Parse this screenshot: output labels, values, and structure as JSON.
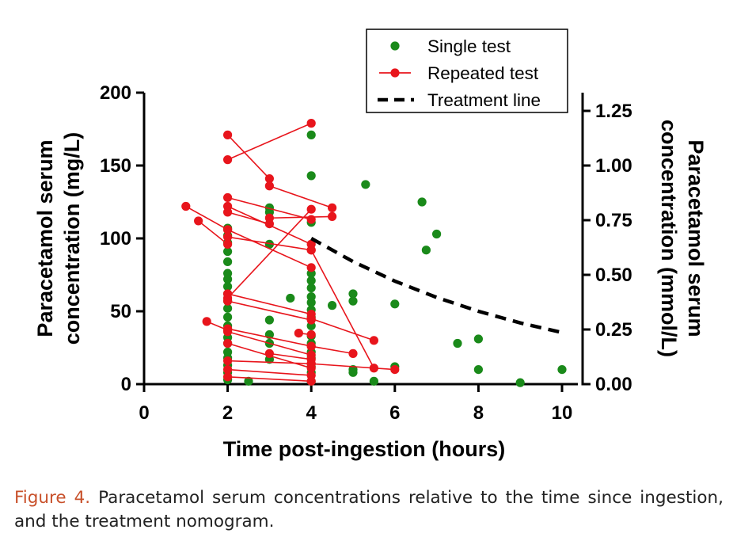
{
  "chart_data": {
    "type": "scatter",
    "xlabel": "Time post-ingestion (hours)",
    "ylabel_left": "Paracetamol serum concentration (mg/L)",
    "ylabel_left_lines": [
      "Paracetamol serum",
      "concentration (mg/L)"
    ],
    "ylabel_right": "Paracetamol serum concentration (mmol/L)",
    "ylabel_right_lines": [
      "Paracetamol serum",
      "concentration (mmol/L)"
    ],
    "xlim": [
      0,
      10.5
    ],
    "xticks": [
      0,
      2,
      4,
      6,
      8,
      10
    ],
    "ylim_left": [
      0,
      200
    ],
    "yticks_left": [
      0,
      50,
      100,
      150,
      200
    ],
    "ylim_right": [
      0,
      1.325
    ],
    "yticks_right": [
      "0.00",
      "0.25",
      "0.50",
      "0.75",
      "1.00",
      "1.25"
    ],
    "legend": {
      "position": "top-right",
      "entries": [
        "Single test",
        "Repeated test",
        "Treatment line"
      ]
    },
    "colors": {
      "single": "#1a8a1a",
      "repeated": "#e8151c",
      "treatment": "#000000"
    },
    "single_test": [
      [
        2,
        3
      ],
      [
        2,
        8
      ],
      [
        2,
        13
      ],
      [
        2,
        18
      ],
      [
        2,
        22
      ],
      [
        2,
        28
      ],
      [
        2,
        32
      ],
      [
        2,
        40
      ],
      [
        2,
        46
      ],
      [
        2,
        52
      ],
      [
        2,
        57
      ],
      [
        2,
        62
      ],
      [
        2,
        67
      ],
      [
        2,
        72
      ],
      [
        2,
        76
      ],
      [
        2,
        84
      ],
      [
        2,
        91
      ],
      [
        2,
        97
      ],
      [
        2,
        102
      ],
      [
        2,
        107
      ],
      [
        2.5,
        2
      ],
      [
        3,
        17
      ],
      [
        3,
        28
      ],
      [
        3,
        34
      ],
      [
        3,
        44
      ],
      [
        3,
        96
      ],
      [
        3,
        118
      ],
      [
        3,
        121
      ],
      [
        3.5,
        59
      ],
      [
        4,
        2
      ],
      [
        4,
        8
      ],
      [
        4,
        12
      ],
      [
        4,
        18
      ],
      [
        4,
        22
      ],
      [
        4,
        28
      ],
      [
        4,
        33
      ],
      [
        4,
        40
      ],
      [
        4,
        46
      ],
      [
        4,
        51
      ],
      [
        4,
        56
      ],
      [
        4,
        60
      ],
      [
        4,
        66
      ],
      [
        4,
        71
      ],
      [
        4,
        76
      ],
      [
        4,
        111
      ],
      [
        4,
        143
      ],
      [
        4,
        171
      ],
      [
        4.5,
        54
      ],
      [
        5,
        8
      ],
      [
        5,
        10
      ],
      [
        5,
        57
      ],
      [
        5,
        62
      ],
      [
        5.3,
        137
      ],
      [
        5.5,
        2
      ],
      [
        6,
        12
      ],
      [
        6,
        55
      ],
      [
        6.65,
        125
      ],
      [
        6.75,
        92
      ],
      [
        7,
        103
      ],
      [
        7.5,
        28
      ],
      [
        8,
        10
      ],
      [
        8,
        31
      ],
      [
        9,
        1
      ],
      [
        10,
        10
      ]
    ],
    "repeated_test": [
      [
        [
          1,
          122
        ],
        [
          2,
          106
        ]
      ],
      [
        [
          1.3,
          112
        ],
        [
          2,
          96
        ]
      ],
      [
        [
          1.5,
          43
        ],
        [
          2,
          37
        ]
      ],
      [
        [
          2,
          171
        ],
        [
          3,
          141
        ]
      ],
      [
        [
          2,
          154
        ],
        [
          4,
          179
        ]
      ],
      [
        [
          2,
          128
        ],
        [
          4,
          113
        ]
      ],
      [
        [
          2,
          122
        ],
        [
          4,
          96
        ]
      ],
      [
        [
          2,
          118
        ],
        [
          3,
          110
        ]
      ],
      [
        [
          2,
          106
        ],
        [
          4,
          80
        ]
      ],
      [
        [
          2,
          101
        ],
        [
          4,
          92
        ]
      ],
      [
        [
          2,
          62
        ],
        [
          4,
          48
        ]
      ],
      [
        [
          2,
          59
        ],
        [
          4,
          120
        ]
      ],
      [
        [
          2,
          57
        ],
        [
          4,
          44
        ]
      ],
      [
        [
          2,
          38
        ],
        [
          4,
          26
        ]
      ],
      [
        [
          2,
          36
        ],
        [
          4,
          20
        ]
      ],
      [
        [
          2,
          28
        ],
        [
          4,
          11
        ]
      ],
      [
        [
          2,
          16
        ],
        [
          4,
          14
        ]
      ],
      [
        [
          2,
          10
        ],
        [
          4,
          6
        ]
      ],
      [
        [
          2,
          5
        ],
        [
          4,
          2
        ]
      ],
      [
        [
          3,
          114
        ],
        [
          4.5,
          115
        ]
      ],
      [
        [
          3,
          21
        ],
        [
          4,
          17
        ]
      ],
      [
        [
          3,
          136
        ],
        [
          4.5,
          121
        ]
      ],
      [
        [
          3.7,
          35
        ],
        [
          4,
          34
        ]
      ],
      [
        [
          4,
          92
        ],
        [
          5.5,
          11
        ]
      ],
      [
        [
          4,
          45
        ],
        [
          5.5,
          30
        ]
      ],
      [
        [
          4,
          14
        ],
        [
          6,
          10
        ]
      ],
      [
        [
          4,
          26
        ],
        [
          5,
          21
        ]
      ]
    ],
    "treatment_line": [
      [
        4,
        100
      ],
      [
        5,
        84.1
      ],
      [
        6,
        70.7
      ],
      [
        7,
        59.5
      ],
      [
        8,
        50
      ],
      [
        9,
        42
      ],
      [
        10,
        35.4
      ]
    ]
  },
  "caption": {
    "label": "Figure 4.",
    "text": "Paracetamol serum concentrations relative to the time since ingestion, and the treatment nomogram."
  }
}
